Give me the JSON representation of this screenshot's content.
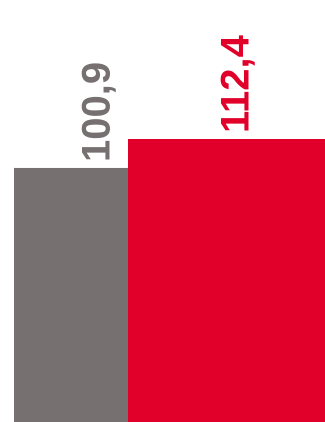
{
  "chart_data": {
    "type": "bar",
    "categories": [
      "",
      ""
    ],
    "values": [
      100.9,
      112.4
    ],
    "data_labels": [
      "100,9",
      "112,4"
    ],
    "colors": [
      "#767170",
      "#e0002a"
    ],
    "ylim": [
      0,
      112.4
    ],
    "title": "",
    "xlabel": "",
    "ylabel": "",
    "grid": false,
    "legend": "none",
    "label_orientation": "vertical"
  }
}
